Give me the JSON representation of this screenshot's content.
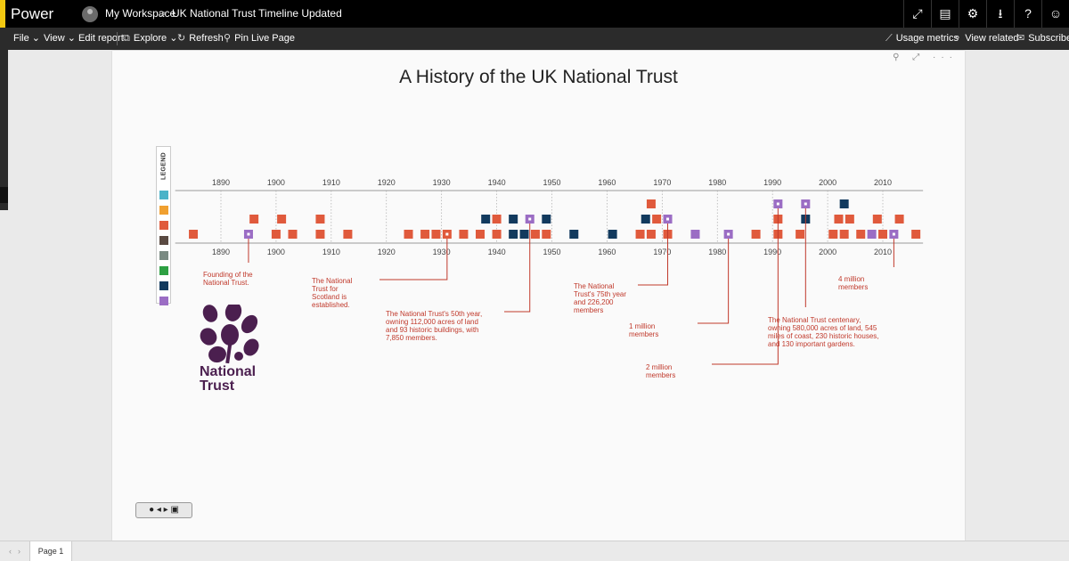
{
  "app": {
    "name": "Power BI",
    "accent": "#f2c811"
  },
  "breadcrumb": {
    "workspace": "My Workspace",
    "separator": ">",
    "report": "UK National Trust Timeline Updated"
  },
  "titlebar_icons": [
    "fullscreen-icon",
    "comment-icon",
    "settings-icon",
    "download-icon",
    "help-icon",
    "feedback-icon"
  ],
  "titlebar_glyphs": [
    "⤢",
    "▤",
    "⚙",
    "⭳",
    "?",
    "☺"
  ],
  "commands": {
    "file": "File",
    "view": "View",
    "edit_report": "Edit report",
    "explore": "Explore",
    "refresh": "Refresh",
    "pin_live_page": "Pin Live Page",
    "usage_metrics": "Usage metrics",
    "view_related": "View related",
    "subscribe": "Subscribe"
  },
  "report": {
    "title": "A History of the UK National Trust",
    "visual_tools": "⚲ ⤢ ···"
  },
  "legend": {
    "label": "LEGEND",
    "colors": [
      "#4bb3c8",
      "#f0a030",
      "#e05a3c",
      "#5a4a42",
      "#7a8a82",
      "#2ea043",
      "#123a5e",
      "#9b6dc4"
    ]
  },
  "chart_data": {
    "type": "timeline",
    "axis": {
      "min": 1883,
      "max": 2016,
      "ticks": [
        1890,
        1900,
        1910,
        1920,
        1930,
        1940,
        1950,
        1960,
        1970,
        1980,
        1990,
        2000,
        2010
      ]
    },
    "colors": {
      "event": "#e05a3c",
      "milestone": "#9b6dc4",
      "org": "#123a5e"
    },
    "events": [
      {
        "year": 1885,
        "row": 0,
        "kind": "event"
      },
      {
        "year": 1895,
        "row": 0,
        "kind": "milestone",
        "marked": true
      },
      {
        "year": 1896,
        "row": 1,
        "kind": "event"
      },
      {
        "year": 1900,
        "row": 0,
        "kind": "event"
      },
      {
        "year": 1901,
        "row": 1,
        "kind": "event"
      },
      {
        "year": 1903,
        "row": 0,
        "kind": "event"
      },
      {
        "year": 1908,
        "row": 0,
        "kind": "event"
      },
      {
        "year": 1908,
        "row": 1,
        "kind": "event"
      },
      {
        "year": 1913,
        "row": 0,
        "kind": "event"
      },
      {
        "year": 1924,
        "row": 0,
        "kind": "event"
      },
      {
        "year": 1927,
        "row": 0,
        "kind": "event"
      },
      {
        "year": 1929,
        "row": 0,
        "kind": "event"
      },
      {
        "year": 1931,
        "row": 0,
        "kind": "event",
        "marked": true
      },
      {
        "year": 1934,
        "row": 0,
        "kind": "event"
      },
      {
        "year": 1937,
        "row": 0,
        "kind": "event"
      },
      {
        "year": 1938,
        "row": 1,
        "kind": "org"
      },
      {
        "year": 1940,
        "row": 0,
        "kind": "event"
      },
      {
        "year": 1940,
        "row": 1,
        "kind": "event"
      },
      {
        "year": 1943,
        "row": 0,
        "kind": "org"
      },
      {
        "year": 1943,
        "row": 1,
        "kind": "org"
      },
      {
        "year": 1945,
        "row": 0,
        "kind": "org"
      },
      {
        "year": 1946,
        "row": 1,
        "kind": "milestone",
        "marked": true
      },
      {
        "year": 1947,
        "row": 0,
        "kind": "event"
      },
      {
        "year": 1949,
        "row": 0,
        "kind": "event"
      },
      {
        "year": 1949,
        "row": 1,
        "kind": "org"
      },
      {
        "year": 1954,
        "row": 0,
        "kind": "org"
      },
      {
        "year": 1961,
        "row": 0,
        "kind": "org"
      },
      {
        "year": 1966,
        "row": 0,
        "kind": "event"
      },
      {
        "year": 1967,
        "row": 1,
        "kind": "org"
      },
      {
        "year": 1968,
        "row": 2,
        "kind": "event"
      },
      {
        "year": 1968,
        "row": 0,
        "kind": "event"
      },
      {
        "year": 1969,
        "row": 1,
        "kind": "event"
      },
      {
        "year": 1971,
        "row": 1,
        "kind": "milestone",
        "marked": true
      },
      {
        "year": 1971,
        "row": 0,
        "kind": "event"
      },
      {
        "year": 1976,
        "row": 0,
        "kind": "milestone"
      },
      {
        "year": 1982,
        "row": 0,
        "kind": "milestone",
        "marked": true
      },
      {
        "year": 1987,
        "row": 0,
        "kind": "event"
      },
      {
        "year": 1991,
        "row": 2,
        "kind": "milestone",
        "marked": true
      },
      {
        "year": 1991,
        "row": 1,
        "kind": "event"
      },
      {
        "year": 1991,
        "row": 0,
        "kind": "event"
      },
      {
        "year": 1995,
        "row": 0,
        "kind": "event"
      },
      {
        "year": 1996,
        "row": 2,
        "kind": "milestone",
        "marked": true
      },
      {
        "year": 1996,
        "row": 1,
        "kind": "org"
      },
      {
        "year": 2001,
        "row": 0,
        "kind": "event"
      },
      {
        "year": 2002,
        "row": 1,
        "kind": "event"
      },
      {
        "year": 2003,
        "row": 2,
        "kind": "org"
      },
      {
        "year": 2003,
        "row": 0,
        "kind": "event"
      },
      {
        "year": 2004,
        "row": 1,
        "kind": "event"
      },
      {
        "year": 2006,
        "row": 0,
        "kind": "event"
      },
      {
        "year": 2008,
        "row": 0,
        "kind": "milestone"
      },
      {
        "year": 2009,
        "row": 1,
        "kind": "event"
      },
      {
        "year": 2010,
        "row": 0,
        "kind": "event"
      },
      {
        "year": 2012,
        "row": 0,
        "kind": "milestone",
        "marked": true
      },
      {
        "year": 2013,
        "row": 1,
        "kind": "event"
      },
      {
        "year": 2016,
        "row": 0,
        "kind": "event"
      }
    ],
    "annotations": [
      {
        "name": "annotation-founding",
        "year": 1895,
        "lines": [
          "Founding of the",
          "National Trust."
        ]
      },
      {
        "name": "annotation-scotland",
        "year": 1931,
        "lines": [
          "The National",
          "Trust for",
          "Scotland is",
          "established."
        ]
      },
      {
        "name": "annotation-50th-year",
        "year": 1946,
        "lines": [
          "The National Trust's 50th year,",
          "owning 112,000 acres of land",
          "and 93 historic buildings, with",
          "7,850 members."
        ]
      },
      {
        "name": "annotation-75th-year",
        "year": 1971,
        "lines": [
          "The National",
          "Trust's 75th year",
          "and 226,200",
          "members"
        ]
      },
      {
        "name": "annotation-1-million",
        "year": 1982,
        "lines": [
          "1 million",
          "members"
        ]
      },
      {
        "name": "annotation-2-million",
        "year": 1991,
        "lines": [
          "2 million",
          "members"
        ]
      },
      {
        "name": "annotation-centenary",
        "year": 1996,
        "lines": [
          "The National Trust centenary,",
          "owning 580,000 acres of land, 545",
          "miles of coast, 230 historic houses,",
          "and 130 important gardens."
        ]
      },
      {
        "name": "annotation-4-million",
        "year": 2012,
        "lines": [
          "4 million",
          "members"
        ]
      }
    ]
  },
  "logo": {
    "line1": "National",
    "line2": "Trust"
  },
  "playback": {
    "label": "● ◂ ▸ ▣"
  },
  "pages": {
    "nav_left": "‹",
    "nav_right": "›",
    "tab1": "Page 1"
  }
}
